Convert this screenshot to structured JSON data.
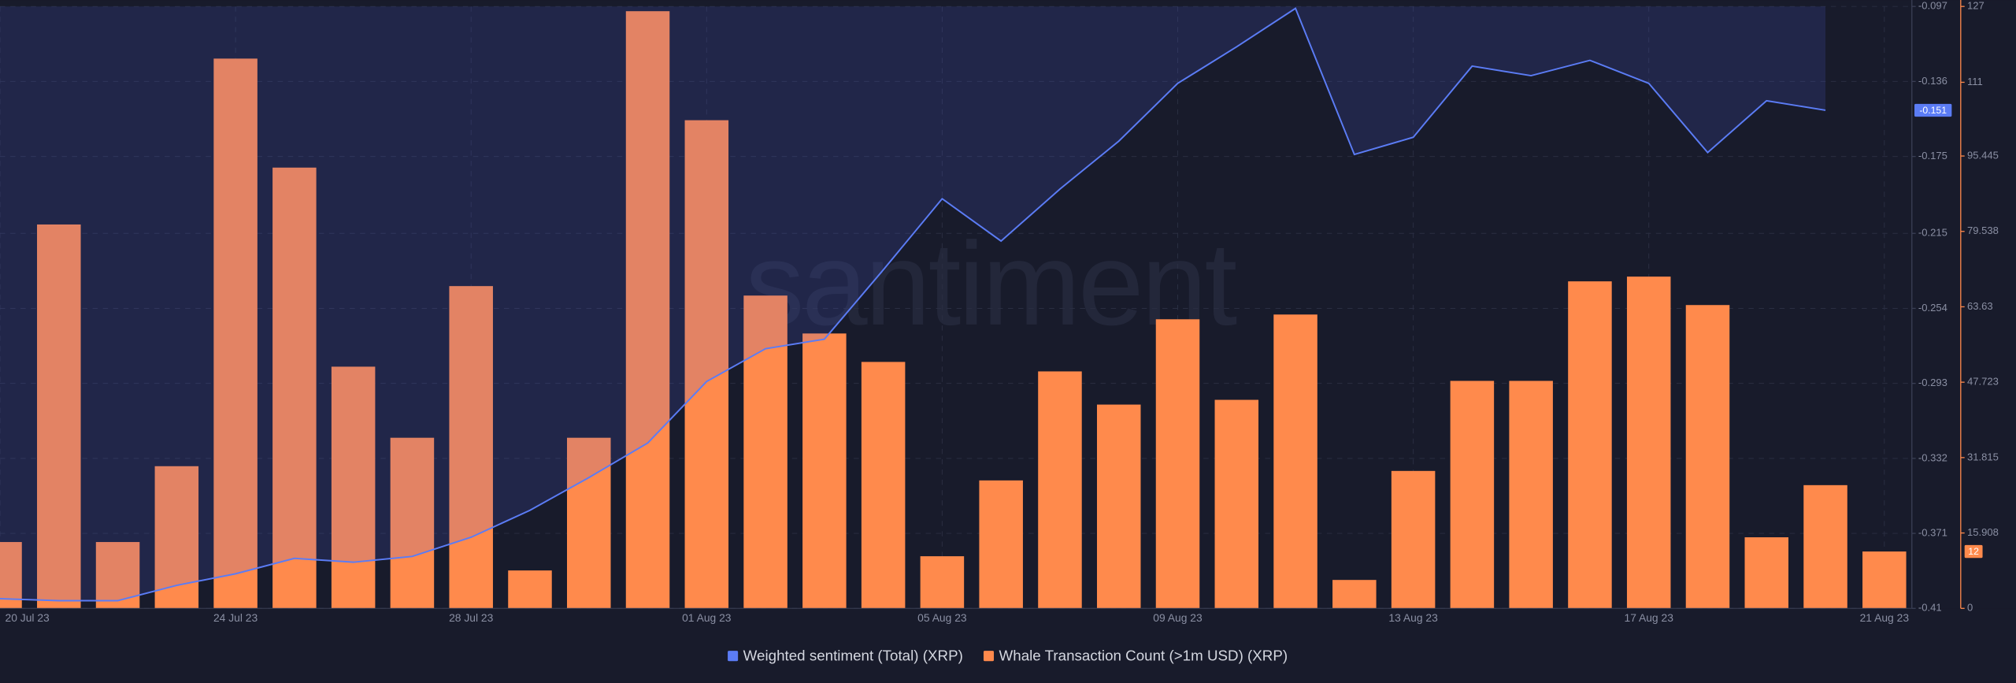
{
  "chart_data": {
    "type": "combo",
    "watermark": "santiment",
    "categories": [
      "20 Jul 23",
      null,
      null,
      null,
      "24 Jul 23",
      null,
      null,
      null,
      "28 Jul 23",
      null,
      null,
      null,
      "01 Aug 23",
      null,
      null,
      null,
      "05 Aug 23",
      null,
      null,
      null,
      "09 Aug 23",
      null,
      null,
      null,
      "13 Aug 23",
      null,
      null,
      null,
      "17 Aug 23",
      null,
      null,
      null,
      "21 Aug 23"
    ],
    "series": [
      {
        "name": "Weighted sentiment (Total) (XRP)",
        "type": "line",
        "color": "#5b7cf5",
        "values": [
          -0.405,
          -0.406,
          -0.406,
          -0.398,
          -0.392,
          -0.384,
          -0.386,
          -0.383,
          -0.373,
          -0.359,
          -0.342,
          -0.324,
          -0.292,
          -0.275,
          -0.27,
          -0.234,
          -0.197,
          -0.219,
          -0.192,
          -0.167,
          -0.137,
          -0.118,
          -0.098,
          -0.174,
          -0.165,
          -0.128,
          -0.133,
          -0.125,
          -0.137,
          -0.173,
          -0.146,
          -0.151,
          null
        ]
      },
      {
        "name": "Whale Transaction Count (>1m USD) (XRP)",
        "type": "bar",
        "color": "#ff8a4c",
        "axis": "y2",
        "values": [
          14,
          81,
          14,
          30,
          116,
          93,
          51,
          36,
          68,
          8,
          36,
          126,
          103,
          66,
          58,
          52,
          11,
          27,
          50,
          43,
          61,
          44,
          62,
          6,
          29,
          48,
          48,
          69,
          70,
          64,
          15,
          26,
          12
        ]
      }
    ],
    "ylim": [
      -0.41,
      -0.097
    ],
    "yticks": [
      -0.097,
      -0.136,
      -0.175,
      -0.215,
      -0.254,
      -0.293,
      -0.332,
      -0.371,
      -0.41
    ],
    "y2lim": [
      0,
      127
    ],
    "y2ticks": [
      127,
      111,
      95.445,
      79.538,
      63.63,
      47.723,
      31.815,
      15.908,
      0
    ],
    "grid": true,
    "legend": "bottom"
  }
}
